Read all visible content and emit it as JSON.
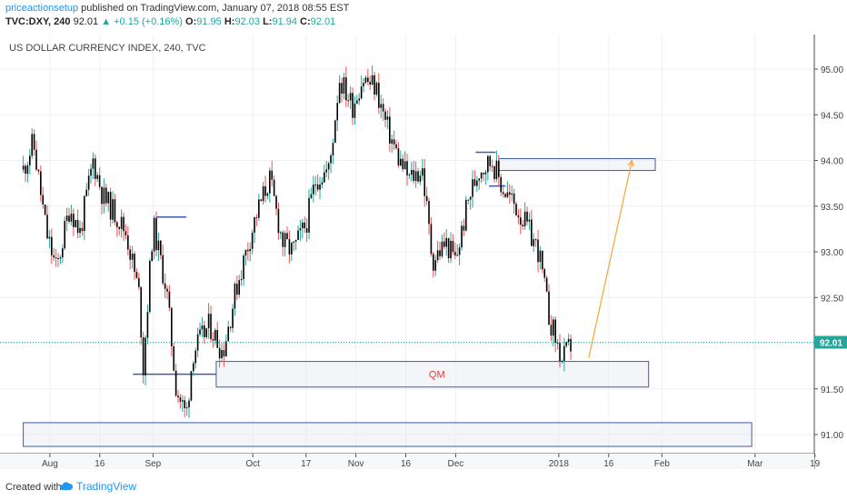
{
  "header": {
    "author": "priceactionsetup",
    "published": "published on TradingView.com, January 07, 2018 08:55 EST",
    "symbol": "TVC:DXY, 240",
    "last": "92.01",
    "change": "▲ +0.15 (+0.16%)",
    "o_label": "O:",
    "o_value": "91.95",
    "h_label": "H:",
    "h_value": "92.03",
    "l_label": "L:",
    "l_value": "91.94",
    "c_label": "C:",
    "c_value": "92.01"
  },
  "footer": {
    "created_with": "Created with",
    "brand": "TradingView"
  },
  "colors": {
    "up": "#26a69a",
    "down": "#ef5350",
    "candle_body": "#000000",
    "box_border": "#3d5ba9",
    "arrow": "#f7a535",
    "label": "#e53935",
    "price_tag": "#26a69a"
  },
  "chart_data": {
    "type": "candlestick",
    "title": "US DOLLAR CURRENCY INDEX, 240, TVC",
    "ylim": [
      90.7,
      95.4
    ],
    "y_ticks": [
      91.0,
      91.5,
      92.0,
      92.5,
      93.0,
      93.5,
      94.0,
      94.5,
      95.0
    ],
    "x_tick_labels": [
      "Aug",
      "16",
      "Sep",
      "Oct",
      "17",
      "Nov",
      "16",
      "Dec",
      "2018",
      "16",
      "Feb",
      "Mar",
      "19"
    ],
    "last_price": 92.01,
    "last_price_label": "92.01",
    "price_path": [
      [
        "2017-07-24",
        93.9
      ],
      [
        "2017-07-27",
        94.2
      ],
      [
        "2017-07-31",
        93.2
      ],
      [
        "2017-08-03",
        92.8
      ],
      [
        "2017-08-07",
        93.5
      ],
      [
        "2017-08-10",
        93.2
      ],
      [
        "2017-08-14",
        94.0
      ],
      [
        "2017-08-17",
        93.6
      ],
      [
        "2017-08-21",
        93.4
      ],
      [
        "2017-08-24",
        93.2
      ],
      [
        "2017-08-28",
        92.5
      ],
      [
        "2017-08-29",
        91.7
      ],
      [
        "2017-09-01",
        93.3
      ],
      [
        "2017-09-05",
        92.6
      ],
      [
        "2017-09-08",
        91.5
      ],
      [
        "2017-09-11",
        91.2
      ],
      [
        "2017-09-13",
        91.9
      ],
      [
        "2017-09-18",
        92.2
      ],
      [
        "2017-09-22",
        91.9
      ],
      [
        "2017-09-26",
        92.6
      ],
      [
        "2017-10-02",
        93.4
      ],
      [
        "2017-10-06",
        93.8
      ],
      [
        "2017-10-10",
        93.1
      ],
      [
        "2017-10-13",
        93.0
      ],
      [
        "2017-10-17",
        93.3
      ],
      [
        "2017-10-20",
        93.8
      ],
      [
        "2017-10-24",
        93.9
      ],
      [
        "2017-10-27",
        94.9
      ],
      [
        "2017-10-31",
        94.6
      ],
      [
        "2017-11-03",
        94.9
      ],
      [
        "2017-11-07",
        94.8
      ],
      [
        "2017-11-10",
        94.4
      ],
      [
        "2017-11-14",
        94.0
      ],
      [
        "2017-11-17",
        93.8
      ],
      [
        "2017-11-21",
        93.9
      ],
      [
        "2017-11-24",
        92.9
      ],
      [
        "2017-11-28",
        93.1
      ],
      [
        "2017-12-01",
        92.9
      ],
      [
        "2017-12-05",
        93.6
      ],
      [
        "2017-12-08",
        93.9
      ],
      [
        "2017-12-12",
        94.0
      ],
      [
        "2017-12-15",
        93.7
      ],
      [
        "2017-12-19",
        93.5
      ],
      [
        "2017-12-22",
        93.3
      ],
      [
        "2017-12-26",
        93.0
      ],
      [
        "2017-12-29",
        92.3
      ],
      [
        "2018-01-02",
        91.8
      ],
      [
        "2018-01-05",
        92.01
      ]
    ],
    "annotations": [
      {
        "type": "box",
        "from": "2017-09-20",
        "to": "2018-01-28",
        "y_low": 91.52,
        "y_high": 91.8,
        "label": "QM"
      },
      {
        "type": "box",
        "from": "2017-07-24",
        "to": "2018-02-28",
        "y_low": 90.87,
        "y_high": 91.13
      },
      {
        "type": "box",
        "from": "2017-12-14",
        "to": "2018-01-30",
        "y_low": 93.89,
        "y_high": 94.02
      },
      {
        "type": "line",
        "from": "2017-08-26",
        "to": "2017-09-20",
        "y": 91.66
      },
      {
        "type": "line",
        "from": "2017-09-02",
        "to": "2017-09-11",
        "y": 93.38
      },
      {
        "type": "line",
        "from": "2017-12-07",
        "to": "2017-12-13",
        "y": 94.09
      },
      {
        "type": "line",
        "from": "2017-12-11",
        "to": "2017-12-16",
        "y": 93.72
      },
      {
        "type": "arrow",
        "from": [
          "2018-01-10",
          91.84
        ],
        "to": [
          "2018-01-23",
          94.0
        ]
      }
    ]
  }
}
